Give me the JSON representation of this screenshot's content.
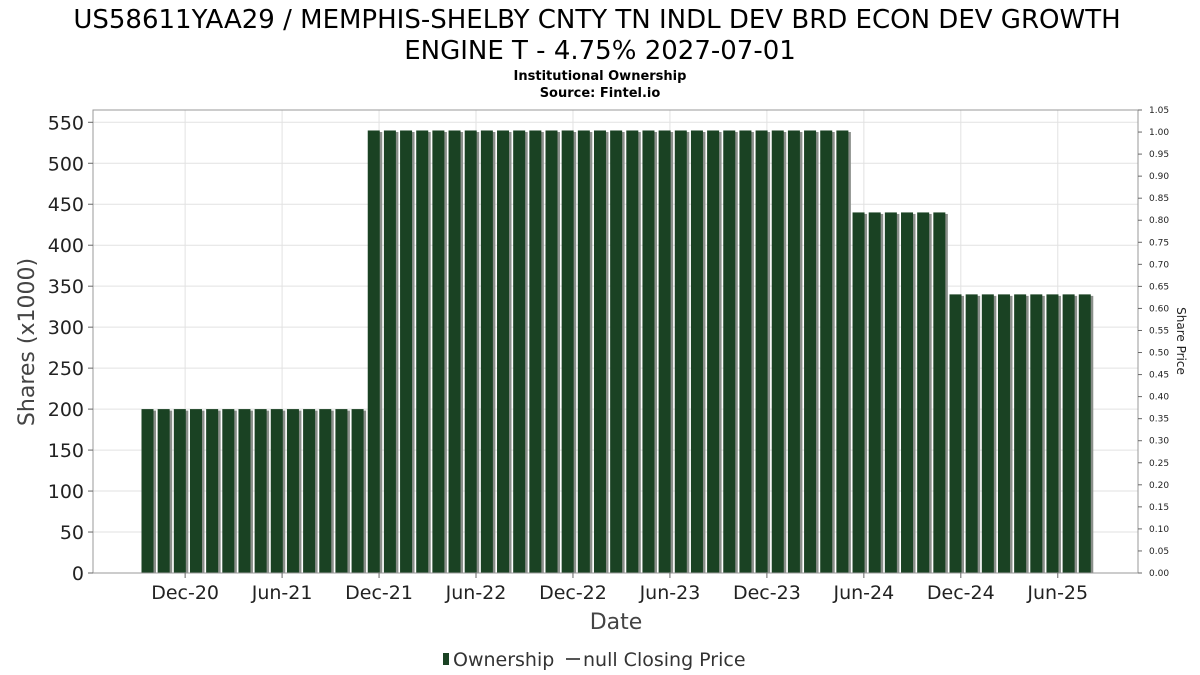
{
  "chart_data": {
    "type": "bar",
    "title_line1": "US58611YAA29 / MEMPHIS-SHELBY CNTY TN INDL DEV BRD ECON DEV GROWTH",
    "title_line2": "ENGINE T - 4.75% 2027-07-01",
    "subtitle": "Institutional Ownership",
    "source": "Source: Fintel.io",
    "xlabel": "Date",
    "ylabel": "Shares (x1000)",
    "y2label": "Share Price",
    "ylim": [
      0,
      565
    ],
    "yticks": [
      0,
      50,
      100,
      150,
      200,
      250,
      300,
      350,
      400,
      450,
      500,
      550
    ],
    "y2lim": [
      0,
      1.05
    ],
    "y2ticks": [
      "0.00",
      "0.05",
      "0.10",
      "0.15",
      "0.20",
      "0.25",
      "0.30",
      "0.35",
      "0.40",
      "0.45",
      "0.50",
      "0.55",
      "0.60",
      "0.65",
      "0.70",
      "0.75",
      "0.80",
      "0.85",
      "0.90",
      "0.95",
      "1.00",
      "1.05"
    ],
    "xticks": [
      {
        "label": "Dec-20",
        "index": 2.7
      },
      {
        "label": "Jun-21",
        "index": 8.7
      },
      {
        "label": "Dec-21",
        "index": 14.7
      },
      {
        "label": "Jun-22",
        "index": 20.7
      },
      {
        "label": "Dec-22",
        "index": 26.7
      },
      {
        "label": "Jun-23",
        "index": 32.7
      },
      {
        "label": "Dec-23",
        "index": 38.7
      },
      {
        "label": "Jun-24",
        "index": 44.7
      },
      {
        "label": "Dec-24",
        "index": 50.7
      },
      {
        "label": "Jun-25",
        "index": 56.7
      }
    ],
    "series": [
      {
        "name": "Ownership",
        "color": "#1a4223",
        "values": [
          200,
          200,
          200,
          200,
          200,
          200,
          200,
          200,
          200,
          200,
          200,
          200,
          200,
          200,
          540,
          540,
          540,
          540,
          540,
          540,
          540,
          540,
          540,
          540,
          540,
          540,
          540,
          540,
          540,
          540,
          540,
          540,
          540,
          540,
          540,
          540,
          540,
          540,
          540,
          540,
          540,
          540,
          540,
          540,
          440,
          440,
          440,
          440,
          440,
          440,
          340,
          340,
          340,
          340,
          340,
          340,
          340,
          340,
          340
        ]
      }
    ],
    "legend": [
      {
        "label": "Ownership",
        "symbol": "bar",
        "color": "#1a4223"
      },
      {
        "label": "null Closing Price",
        "symbol": "line",
        "color": "#555555"
      }
    ],
    "grid": true,
    "legend_position": "bottom"
  }
}
